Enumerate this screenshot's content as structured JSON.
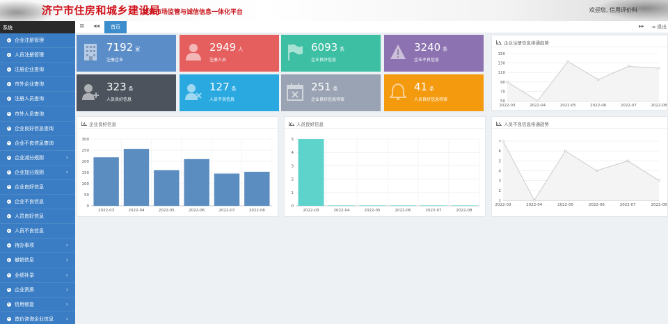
{
  "header": {
    "title": "济宁市住房和城乡建设局",
    "subtitle": "建筑市场监管与诚信信息一体化平台",
    "welcome": "欢迎您, 信用评价科"
  },
  "sidebar": {
    "system_label": "系统",
    "items": [
      {
        "label": "企业注册管理",
        "expandable": false
      },
      {
        "label": "人员注册管理",
        "expandable": false
      },
      {
        "label": "注册企业查询",
        "expandable": false
      },
      {
        "label": "市外企业查询",
        "expandable": false
      },
      {
        "label": "注册人员查询",
        "expandable": false
      },
      {
        "label": "市外人员查询",
        "expandable": false
      },
      {
        "label": "企业良好信息查询",
        "expandable": false
      },
      {
        "label": "企业不良信息查询",
        "expandable": false
      },
      {
        "label": "企业减分规则",
        "expandable": true
      },
      {
        "label": "企业加分规则",
        "expandable": true
      },
      {
        "label": "企业良好信息",
        "expandable": false
      },
      {
        "label": "企业不良信息",
        "expandable": false
      },
      {
        "label": "人员良好信息",
        "expandable": false
      },
      {
        "label": "人员不良信息",
        "expandable": false
      },
      {
        "label": "待办事项",
        "expandable": true
      },
      {
        "label": "撤销信息",
        "expandable": true
      },
      {
        "label": "业绩补录",
        "expandable": true
      },
      {
        "label": "企业资质",
        "expandable": true
      },
      {
        "label": "信用修复",
        "expandable": true
      },
      {
        "label": "造价咨询企业信息",
        "expandable": true
      }
    ]
  },
  "tabbar": {
    "menu_icon": "≡",
    "back_icon": "◂◂",
    "home_tab": "首页",
    "forward_icon": "▸▸",
    "exit_label": "退出"
  },
  "tiles": [
    {
      "value": "7192",
      "unit": "家",
      "label": "注册企业",
      "color": "#5b8dc9",
      "icon": "building-icon"
    },
    {
      "value": "2949",
      "unit": "人",
      "label": "注册人员",
      "color": "#e65f5f",
      "icon": "person-icon"
    },
    {
      "value": "6093",
      "unit": "条",
      "label": "企业良好信息",
      "color": "#3dbfa3",
      "icon": "flag-icon"
    },
    {
      "value": "3240",
      "unit": "条",
      "label": "企业不良信息",
      "color": "#8c72b1",
      "icon": "warning-icon"
    },
    {
      "value": "323",
      "unit": "条",
      "label": "人员良好信息",
      "color": "#4c535c",
      "icon": "user-plus-icon"
    },
    {
      "value": "127",
      "unit": "条",
      "label": "人员不良信息",
      "color": "#2aa9e0",
      "icon": "user-x-icon"
    },
    {
      "value": "251",
      "unit": "条",
      "label": "企业良好信息待审",
      "color": "#9aa3b3",
      "icon": "calendar-x-icon"
    },
    {
      "value": "41",
      "unit": "条",
      "label": "人员良好信息待审",
      "color": "#f39a0f",
      "icon": "bell-icon"
    }
  ],
  "chart_data": [
    {
      "type": "line",
      "title": "企业注册信息排通趋势",
      "categories": [
        "2022-03",
        "2022-04",
        "2022-05",
        "2022-06",
        "2022-07",
        "2022-08"
      ],
      "values": [
        90,
        50,
        133,
        95,
        123,
        119
      ],
      "yticks": [
        50,
        70,
        90,
        110,
        130,
        150
      ],
      "ylim": [
        50,
        150
      ],
      "color": "#cccccc"
    },
    {
      "type": "bar",
      "title": "企业良好信息",
      "categories": [
        "2022-03",
        "2022-04",
        "2022-05",
        "2022-06",
        "2022-07",
        "2022-08"
      ],
      "values": [
        218,
        256,
        160,
        210,
        145,
        153
      ],
      "yticks": [
        0,
        50,
        100,
        150,
        200,
        250,
        300
      ],
      "ylim": [
        0,
        300
      ],
      "color": "#5b8dc0"
    },
    {
      "type": "bar",
      "title": "人员良好信息",
      "categories": [
        "2022-03",
        "2022-04",
        "2022-05",
        "2022-06",
        "2022-07",
        "2022-08"
      ],
      "values": [
        5,
        0,
        0,
        0,
        0,
        0
      ],
      "yticks": [
        0,
        1,
        2,
        3,
        4,
        5
      ],
      "ylim": [
        0,
        5
      ],
      "color": "#5dd3cc"
    },
    {
      "type": "line",
      "title": "人员不良信息排通趋势",
      "categories": [
        "2022-03",
        "2022-04",
        "2022-05",
        "2022-06",
        "2022-07",
        "2022-08"
      ],
      "values": [
        7,
        1,
        6,
        4,
        5,
        3
      ],
      "yticks": [
        1,
        2,
        3,
        4,
        5,
        6,
        7
      ],
      "ylim": [
        1,
        7
      ],
      "color": "#cccccc"
    }
  ]
}
